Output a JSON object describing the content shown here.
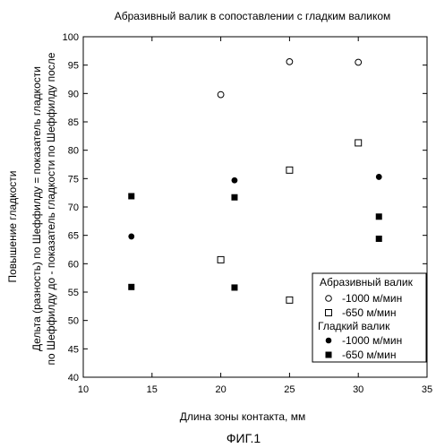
{
  "chart_data": {
    "type": "scatter",
    "title": "Абразивный валик в сопоставлении с гладким валиком",
    "xlabel": "Длина зоны контакта, мм",
    "ylabel_lines": [
      "Повышение гладкости",
      "Дельта (разность) по Шеффилду = показатель гладкости",
      "по Шеффилду до - показатель гладкости по Шеффилду после"
    ],
    "xlim": [
      10,
      35
    ],
    "ylim": [
      40,
      100
    ],
    "xticks": [
      10,
      15,
      20,
      25,
      30,
      35
    ],
    "yticks": [
      40,
      45,
      50,
      55,
      60,
      65,
      70,
      75,
      80,
      85,
      90,
      95,
      100
    ],
    "grid": false,
    "legend_position": "bottom-right",
    "legend_groups": [
      {
        "title": "Абразивный валик",
        "series": [
          {
            "name": "-1000 м/мин",
            "marker": "open-circle",
            "points": [
              [
                20,
                89.8
              ],
              [
                25,
                95.6
              ],
              [
                30,
                95.5
              ]
            ]
          },
          {
            "name": "-650 м/мин",
            "marker": "open-square",
            "points": [
              [
                20,
                60.7
              ],
              [
                25,
                53.6
              ],
              [
                25,
                76.5
              ],
              [
                30,
                81.3
              ]
            ]
          }
        ]
      },
      {
        "title": "Гладкий валик",
        "series": [
          {
            "name": "-1000 м/мин",
            "marker": "filled-circle",
            "points": [
              [
                13.5,
                64.8
              ],
              [
                21,
                74.7
              ],
              [
                31.5,
                75.3
              ]
            ]
          },
          {
            "name": "-650 м/мин",
            "marker": "filled-square",
            "points": [
              [
                13.5,
                55.9
              ],
              [
                13.5,
                71.9
              ],
              [
                21,
                55.8
              ],
              [
                21,
                71.7
              ],
              [
                31.5,
                68.3
              ],
              [
                31.5,
                64.4
              ]
            ]
          }
        ]
      }
    ]
  },
  "caption": "ФИГ.1"
}
